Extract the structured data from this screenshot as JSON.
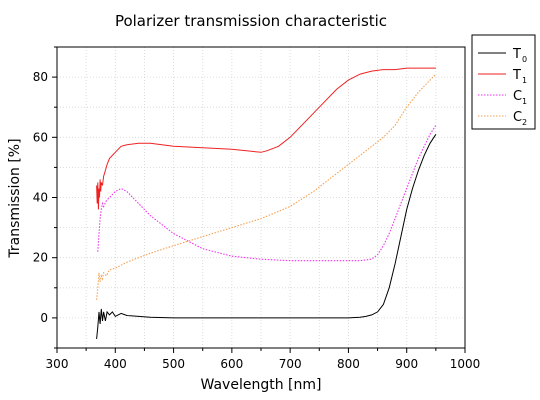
{
  "chart_data": {
    "type": "line",
    "title": "Polarizer transmission characteristic",
    "xlabel": "Wavelength [nm]",
    "ylabel": "Transmission [%]",
    "xlim": [
      300,
      1000
    ],
    "ylim": [
      -10,
      90
    ],
    "x_ticks": [
      300,
      400,
      500,
      600,
      700,
      800,
      900,
      1000
    ],
    "y_ticks": [
      0,
      20,
      40,
      60,
      80
    ],
    "grid": true,
    "legend_position": "outside-right-top",
    "series": [
      {
        "name": "T",
        "name_sub": "0",
        "color": "#000000",
        "style": "solid",
        "x": [
          368,
          370,
          372,
          374,
          376,
          378,
          380,
          383,
          386,
          390,
          395,
          400,
          410,
          420,
          440,
          460,
          500,
          550,
          600,
          650,
          700,
          750,
          800,
          820,
          830,
          840,
          850,
          860,
          870,
          880,
          890,
          900,
          910,
          920,
          930,
          940,
          950
        ],
        "y": [
          -7,
          -3,
          2,
          -2,
          3,
          -1,
          2,
          -1,
          2,
          1,
          2,
          0.5,
          1.5,
          0.8,
          0.5,
          0.2,
          0,
          0,
          0,
          0,
          0,
          0,
          0,
          0.2,
          0.5,
          1,
          2,
          4.5,
          10,
          18,
          27,
          36,
          43,
          49,
          54,
          58,
          61
        ]
      },
      {
        "name": "T",
        "name_sub": "1",
        "color": "#ee2222",
        "style": "solid",
        "x": [
          368,
          369,
          370,
          371,
          372,
          373,
          374,
          375,
          376,
          378,
          380,
          383,
          386,
          390,
          395,
          400,
          410,
          420,
          440,
          460,
          480,
          500,
          550,
          600,
          650,
          660,
          680,
          700,
          720,
          740,
          760,
          780,
          800,
          820,
          840,
          860,
          880,
          900,
          920,
          940,
          950
        ],
        "y": [
          44,
          38,
          45,
          36,
          43,
          40,
          46,
          42,
          45,
          44,
          47,
          49,
          51,
          53,
          54,
          55,
          57,
          57.5,
          58,
          58,
          57.5,
          57,
          56.5,
          56,
          55,
          55.5,
          57,
          60,
          64,
          68,
          72,
          76,
          79,
          81,
          82,
          82.5,
          82.5,
          83,
          83,
          83,
          83
        ]
      },
      {
        "name": "C",
        "name_sub": "1",
        "color": "#ee33ee",
        "style": "dotted",
        "x": [
          370,
          372,
          374,
          376,
          378,
          380,
          385,
          390,
          395,
          400,
          410,
          420,
          440,
          460,
          500,
          550,
          600,
          650,
          700,
          750,
          800,
          820,
          840,
          850,
          860,
          870,
          880,
          890,
          900,
          910,
          920,
          930,
          940,
          950
        ],
        "y": [
          22,
          28,
          33,
          36,
          38,
          37,
          39,
          40,
          41,
          42,
          43,
          42,
          38,
          34,
          28,
          23,
          20.5,
          19.5,
          19,
          19,
          19,
          19,
          19.5,
          21,
          24,
          28,
          33,
          38,
          43,
          48,
          53,
          57,
          61,
          64
        ]
      },
      {
        "name": "C",
        "name_sub": "2",
        "color": "#f5a050",
        "style": "dotted",
        "x": [
          368,
          370,
          372,
          374,
          376,
          378,
          380,
          385,
          390,
          400,
          420,
          440,
          460,
          500,
          550,
          600,
          650,
          700,
          720,
          740,
          760,
          780,
          800,
          820,
          840,
          850,
          860,
          880,
          900,
          920,
          940,
          950
        ],
        "y": [
          6,
          10,
          15,
          12,
          14,
          13,
          15,
          14,
          16,
          16.5,
          18.5,
          20,
          21.5,
          24,
          27,
          30,
          33,
          37,
          39.5,
          42,
          45,
          48,
          51,
          54,
          57,
          58.5,
          60,
          64,
          70,
          75,
          79,
          81
        ]
      }
    ]
  }
}
